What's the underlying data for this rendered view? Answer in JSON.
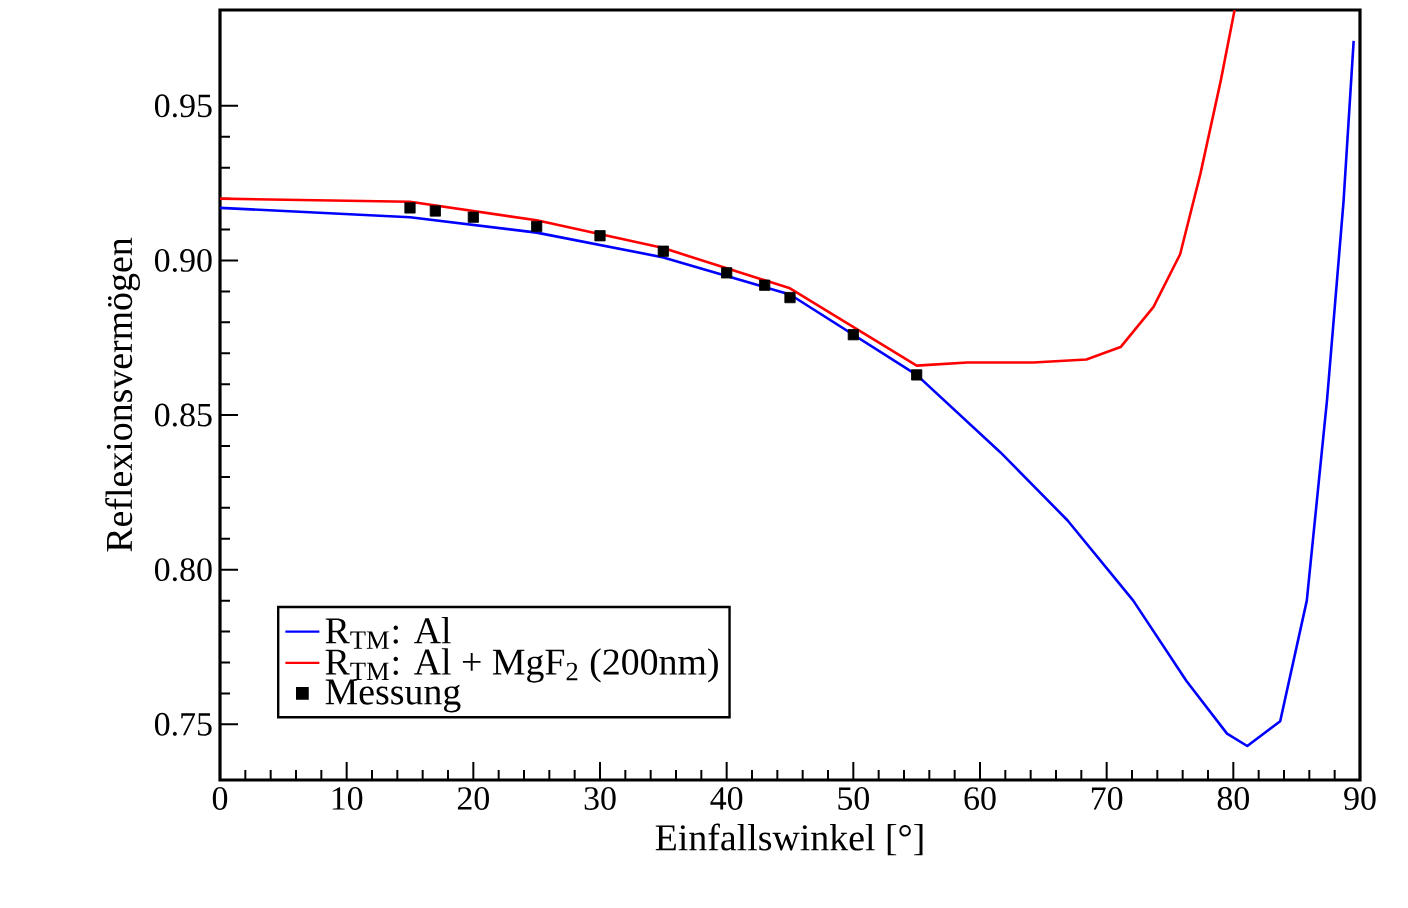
{
  "chart_data": {
    "type": "line",
    "xlabel": "Einfallswinkel [°]",
    "ylabel": "Reflexionsvermögen",
    "xlim": [
      0,
      90
    ],
    "ylim": [
      0.732,
      0.981
    ],
    "xticks": [
      0,
      10,
      20,
      30,
      40,
      50,
      60,
      70,
      80,
      90
    ],
    "yticks": [
      0.75,
      {
        "value": 0.8,
        "label": "0.80"
      },
      0.85,
      {
        "value": 0.9,
        "label": "0.90"
      },
      0.95
    ],
    "grid": false,
    "legend": "bottom left",
    "line_style": "solid",
    "series": [
      {
        "name": "R$_{TM}$: Al",
        "color": "#0000ff",
        "x": [
          0,
          15,
          25,
          35,
          45,
          55,
          61.6,
          66.9,
          72.1,
          76.3,
          79.5,
          81.1,
          83.7,
          85.8,
          87.4,
          88.7,
          89.5
        ],
        "values": [
          0.917,
          0.914,
          0.909,
          0.901,
          0.889,
          0.863,
          0.838,
          0.816,
          0.79,
          0.764,
          0.747,
          0.743,
          0.751,
          0.79,
          0.855,
          0.919,
          0.971
        ]
      },
      {
        "name": "R$_{TM}$: Al + MgF$_{2}$ (200nm)",
        "color": "#ff0000",
        "x": [
          0,
          15,
          25,
          35,
          45,
          55,
          59,
          64.2,
          68.4,
          71.1,
          73.7,
          75.8,
          77.4,
          79,
          80.1
        ],
        "values": [
          0.92,
          0.919,
          0.913,
          0.904,
          0.891,
          0.866,
          0.867,
          0.867,
          0.868,
          0.872,
          0.885,
          0.902,
          0.928,
          0.958,
          0.981
        ]
      },
      {
        "name": "Messung",
        "color": "#000000",
        "type": "scatter",
        "marker": "square",
        "x": [
          15,
          17,
          20,
          25,
          30,
          35,
          40,
          43,
          45,
          50,
          55
        ],
        "values": [
          0.917,
          0.916,
          0.914,
          0.911,
          0.908,
          0.903,
          0.896,
          0.892,
          0.888,
          0.876,
          0.863
        ]
      }
    ]
  }
}
